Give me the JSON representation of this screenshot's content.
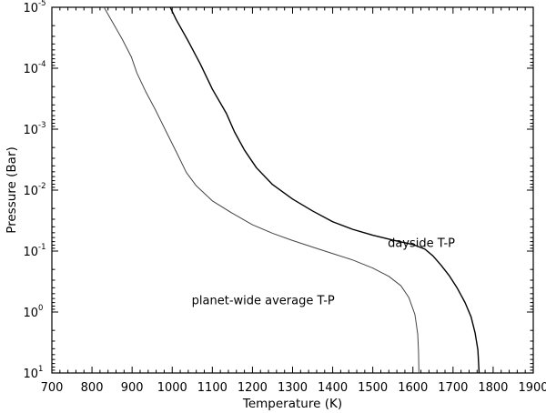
{
  "chart_data": {
    "type": "line",
    "title": "",
    "xlabel": "Temperature (K)",
    "ylabel": "Pressure (Bar)",
    "x_scale": "linear",
    "y_scale": "log",
    "y_inverted": true,
    "xlim": [
      700,
      1900
    ],
    "ylim": [
      1e-05,
      10
    ],
    "x_ticks": [
      700,
      800,
      900,
      1000,
      1100,
      1200,
      1300,
      1400,
      1500,
      1600,
      1700,
      1800,
      1900
    ],
    "x_tick_labels": [
      "700",
      "800",
      "900",
      "1000",
      "1100",
      "1200",
      "1300",
      "1400",
      "1500",
      "1600",
      "1700",
      "1800",
      "1900"
    ],
    "y_ticks": [
      1e-05,
      0.0001,
      0.001,
      0.01,
      0.1,
      1,
      10
    ],
    "y_tick_labels": [
      {
        "base": "10",
        "exp": "-5"
      },
      {
        "base": "10",
        "exp": "-4"
      },
      {
        "base": "10",
        "exp": "-3"
      },
      {
        "base": "10",
        "exp": "-2"
      },
      {
        "base": "10",
        "exp": "-1"
      },
      {
        "base": "10",
        "exp": "0"
      },
      {
        "base": "10",
        "exp": "1"
      }
    ],
    "grid": false,
    "series": [
      {
        "name": "dayside T-P",
        "color": "#000000",
        "points": [
          [
            995,
            1e-05
          ],
          [
            1010,
            1.6e-05
          ],
          [
            1040,
            3.6e-05
          ],
          [
            1070,
            8.5e-05
          ],
          [
            1100,
            0.00022
          ],
          [
            1135,
            0.00055
          ],
          [
            1155,
            0.0011
          ],
          [
            1180,
            0.0022
          ],
          [
            1210,
            0.0043
          ],
          [
            1250,
            0.0081
          ],
          [
            1300,
            0.014
          ],
          [
            1350,
            0.022
          ],
          [
            1400,
            0.033
          ],
          [
            1450,
            0.044
          ],
          [
            1500,
            0.055
          ],
          [
            1550,
            0.066
          ],
          [
            1600,
            0.078
          ],
          [
            1630,
            0.093
          ],
          [
            1650,
            0.12
          ],
          [
            1670,
            0.17
          ],
          [
            1690,
            0.25
          ],
          [
            1710,
            0.4
          ],
          [
            1730,
            0.7
          ],
          [
            1745,
            1.2
          ],
          [
            1755,
            2.2
          ],
          [
            1762,
            4.2
          ],
          [
            1765,
            10
          ]
        ]
      },
      {
        "name": "planet-wide average T-P",
        "color": "#444444",
        "points": [
          [
            830,
            1e-05
          ],
          [
            850,
            1.7e-05
          ],
          [
            875,
            3.3e-05
          ],
          [
            898,
            6.5e-05
          ],
          [
            912,
            0.00012
          ],
          [
            935,
            0.00025
          ],
          [
            958,
            0.00048
          ],
          [
            985,
            0.0011
          ],
          [
            1012,
            0.0025
          ],
          [
            1035,
            0.0051
          ],
          [
            1060,
            0.0085
          ],
          [
            1100,
            0.015
          ],
          [
            1150,
            0.024
          ],
          [
            1200,
            0.037
          ],
          [
            1250,
            0.051
          ],
          [
            1300,
            0.067
          ],
          [
            1350,
            0.086
          ],
          [
            1400,
            0.11
          ],
          [
            1450,
            0.14
          ],
          [
            1500,
            0.19
          ],
          [
            1540,
            0.26
          ],
          [
            1570,
            0.37
          ],
          [
            1590,
            0.58
          ],
          [
            1605,
            1.1
          ],
          [
            1612,
            2.3
          ],
          [
            1614,
            4.5
          ],
          [
            1615,
            10
          ]
        ]
      }
    ],
    "annotations": [
      {
        "text": "dayside T-P",
        "x": 1705,
        "y": 0.085
      },
      {
        "text": "planet-wide average T-P",
        "x": 1405,
        "y": 0.75
      }
    ]
  }
}
